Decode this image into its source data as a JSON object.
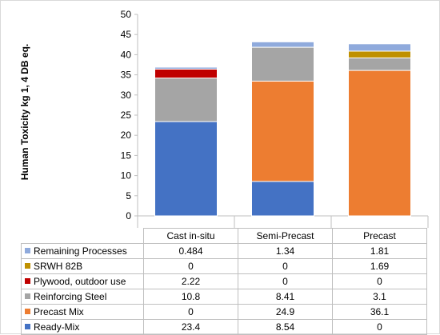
{
  "chart_data": {
    "type": "bar",
    "stacked": true,
    "ylabel": "Human Toxicity  kg 1, 4 DB eq.",
    "ylim": [
      0,
      50
    ],
    "yticks": [
      0,
      5,
      10,
      15,
      20,
      25,
      30,
      35,
      40,
      45,
      50
    ],
    "grid": false,
    "legend": "table",
    "categories": [
      "Cast in-situ",
      "Semi-Precast",
      "Precast"
    ],
    "series": [
      {
        "name": "Ready-Mix",
        "color": "#4472C4",
        "values": [
          23.4,
          8.54,
          0
        ],
        "labels": [
          "23.4",
          "8.54",
          "0"
        ]
      },
      {
        "name": "Precast Mix",
        "color": "#ED7D31",
        "values": [
          0,
          24.9,
          36.1
        ],
        "labels": [
          "0",
          "24.9",
          "36.1"
        ]
      },
      {
        "name": "Reinforcing Steel",
        "color": "#A5A5A5",
        "values": [
          10.8,
          8.41,
          3.1
        ],
        "labels": [
          "10.8",
          "8.41",
          "3.1"
        ]
      },
      {
        "name": "Plywood, outdoor use",
        "color": "#C00000",
        "values": [
          2.22,
          0,
          0
        ],
        "labels": [
          "2.22",
          "0",
          "0"
        ]
      },
      {
        "name": "SRWH 82B",
        "color": "#BF9000",
        "values": [
          0,
          0,
          1.69
        ],
        "labels": [
          "0",
          "0",
          "1.69"
        ]
      },
      {
        "name": "Remaining Processes",
        "color": "#8FAADC",
        "values": [
          0.484,
          1.34,
          1.81
        ],
        "labels": [
          "0.484",
          "1.34",
          "1.81"
        ]
      }
    ]
  }
}
